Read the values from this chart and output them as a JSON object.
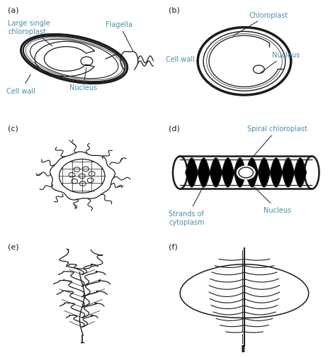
{
  "background_color": "#ffffff",
  "line_color": "#1a1a1a",
  "label_color": "#4a8fa8",
  "panel_label_fontsize": 8,
  "annotation_fontsize": 7,
  "figsize": [
    4.63,
    5.06
  ],
  "dpi": 100,
  "panel_labels": [
    "(a)",
    "(b)",
    "(c)",
    "(d)",
    "(e)",
    "(f)"
  ]
}
